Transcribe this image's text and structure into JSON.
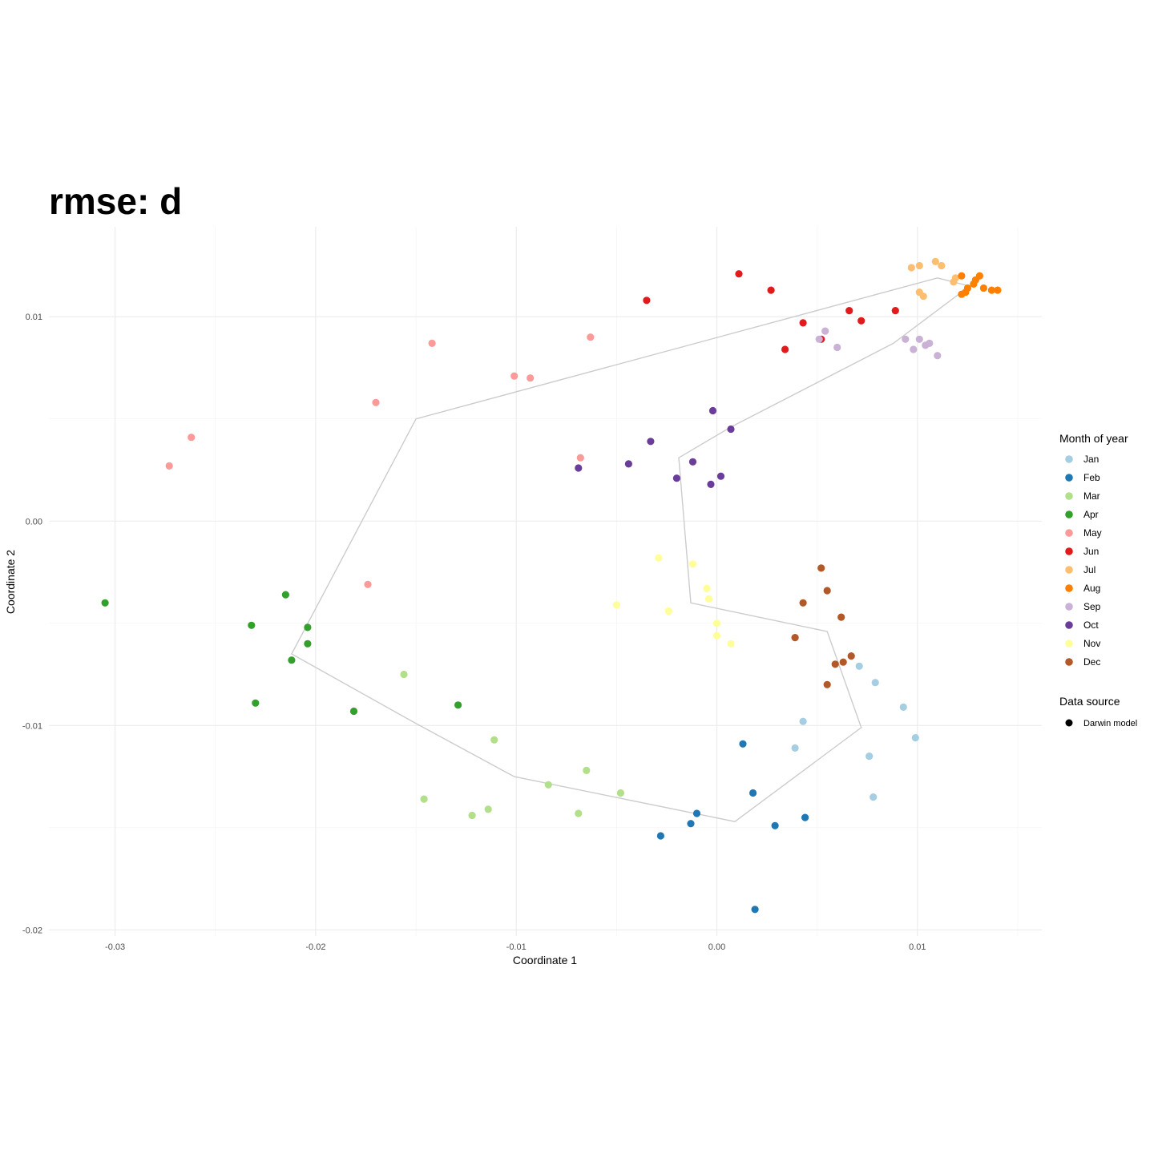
{
  "chart_data": {
    "type": "scatter",
    "title": "rmse: d",
    "xlabel": "Coordinate 1",
    "ylabel": "Coordinate 2",
    "xlim": [
      -0.0333,
      0.0162
    ],
    "ylim": [
      -0.0203,
      0.0144
    ],
    "x_ticks": [
      -0.03,
      -0.02,
      -0.01,
      0.0,
      0.01
    ],
    "x_tick_labels": [
      "-0.03",
      "-0.02",
      "-0.01",
      "0.00",
      "0.01"
    ],
    "y_ticks": [
      -0.02,
      -0.01,
      0.0,
      0.01
    ],
    "y_tick_labels": [
      "-0.02",
      "-0.01",
      "0.00",
      "0.01"
    ],
    "grid": true,
    "legend_placement": "right",
    "legend": {
      "month_title": "Month of year",
      "source_title": "Data source",
      "source_label": "Darwin model"
    },
    "series": [
      {
        "name": "Jan",
        "color": "#a6cee3",
        "points": [
          [
            0.0071,
            -0.0071
          ],
          [
            0.0079,
            -0.0079
          ],
          [
            0.0093,
            -0.0091
          ],
          [
            0.0099,
            -0.0106
          ],
          [
            0.0043,
            -0.0098
          ],
          [
            0.0039,
            -0.0111
          ],
          [
            0.0076,
            -0.0115
          ],
          [
            0.0078,
            -0.0135
          ]
        ]
      },
      {
        "name": "Feb",
        "color": "#1f78b4",
        "points": [
          [
            0.0013,
            -0.0109
          ],
          [
            0.0018,
            -0.0133
          ],
          [
            -0.001,
            -0.0143
          ],
          [
            -0.0013,
            -0.0148
          ],
          [
            -0.0028,
            -0.0154
          ],
          [
            0.0029,
            -0.0149
          ],
          [
            0.0044,
            -0.0145
          ],
          [
            0.0019,
            -0.019
          ]
        ]
      },
      {
        "name": "Mar",
        "color": "#b2df8a",
        "points": [
          [
            -0.0156,
            -0.0075
          ],
          [
            -0.0111,
            -0.0107
          ],
          [
            -0.0065,
            -0.0122
          ],
          [
            -0.0084,
            -0.0129
          ],
          [
            -0.0048,
            -0.0133
          ],
          [
            -0.0146,
            -0.0136
          ],
          [
            -0.0114,
            -0.0141
          ],
          [
            -0.0122,
            -0.0144
          ],
          [
            -0.0069,
            -0.0143
          ]
        ]
      },
      {
        "name": "Apr",
        "color": "#33a02c",
        "points": [
          [
            -0.0305,
            -0.004
          ],
          [
            -0.0215,
            -0.0036
          ],
          [
            -0.0232,
            -0.0051
          ],
          [
            -0.0204,
            -0.0052
          ],
          [
            -0.0204,
            -0.006
          ],
          [
            -0.0212,
            -0.0068
          ],
          [
            -0.023,
            -0.0089
          ],
          [
            -0.0181,
            -0.0093
          ],
          [
            -0.0129,
            -0.009
          ]
        ]
      },
      {
        "name": "May",
        "color": "#fb9a99",
        "points": [
          [
            -0.0262,
            0.0041
          ],
          [
            -0.0273,
            0.0027
          ],
          [
            -0.017,
            0.0058
          ],
          [
            -0.0142,
            0.0087
          ],
          [
            -0.0101,
            0.0071
          ],
          [
            -0.0093,
            0.007
          ],
          [
            -0.0063,
            0.009
          ],
          [
            -0.0068,
            0.0031
          ],
          [
            -0.0174,
            -0.0031
          ]
        ]
      },
      {
        "name": "Jun",
        "color": "#e31a1c",
        "points": [
          [
            0.0011,
            0.0121
          ],
          [
            0.0027,
            0.0113
          ],
          [
            -0.0035,
            0.0108
          ],
          [
            0.0066,
            0.0103
          ],
          [
            0.0089,
            0.0103
          ],
          [
            0.0043,
            0.0097
          ],
          [
            0.0072,
            0.0098
          ],
          [
            0.0052,
            0.0089
          ],
          [
            0.0034,
            0.0084
          ]
        ]
      },
      {
        "name": "Jul",
        "color": "#fdbf6f",
        "points": [
          [
            0.0109,
            0.0127
          ],
          [
            0.0112,
            0.0125
          ],
          [
            0.0097,
            0.0124
          ],
          [
            0.0101,
            0.0125
          ],
          [
            0.0118,
            0.0117
          ],
          [
            0.0119,
            0.0119
          ],
          [
            0.0101,
            0.0112
          ],
          [
            0.0103,
            0.011
          ],
          [
            0.0128,
            0.0116
          ]
        ]
      },
      {
        "name": "Aug",
        "color": "#ff7f00",
        "points": [
          [
            0.0122,
            0.012
          ],
          [
            0.0131,
            0.012
          ],
          [
            0.0129,
            0.0118
          ],
          [
            0.0128,
            0.0116
          ],
          [
            0.0125,
            0.0114
          ],
          [
            0.0133,
            0.0114
          ],
          [
            0.0137,
            0.0113
          ],
          [
            0.014,
            0.0113
          ],
          [
            0.0122,
            0.0111
          ],
          [
            0.0124,
            0.0112
          ]
        ]
      },
      {
        "name": "Sep",
        "color": "#cab2d6",
        "points": [
          [
            0.0054,
            0.0093
          ],
          [
            0.0051,
            0.0089
          ],
          [
            0.006,
            0.0085
          ],
          [
            0.0094,
            0.0089
          ],
          [
            0.0101,
            0.0089
          ],
          [
            0.0106,
            0.0087
          ],
          [
            0.0098,
            0.0084
          ],
          [
            0.0104,
            0.0086
          ],
          [
            0.011,
            0.0081
          ]
        ]
      },
      {
        "name": "Oct",
        "color": "#6a3d9a",
        "points": [
          [
            -0.0002,
            0.0054
          ],
          [
            0.0007,
            0.0045
          ],
          [
            -0.0033,
            0.0039
          ],
          [
            -0.0069,
            0.0026
          ],
          [
            -0.0044,
            0.0028
          ],
          [
            -0.0012,
            0.0029
          ],
          [
            -0.002,
            0.0021
          ],
          [
            -0.0003,
            0.0018
          ],
          [
            0.0002,
            0.0022
          ]
        ]
      },
      {
        "name": "Nov",
        "color": "#ffff99",
        "points": [
          [
            -0.0029,
            -0.0018
          ],
          [
            -0.0012,
            -0.0021
          ],
          [
            -0.005,
            -0.0041
          ],
          [
            -0.0024,
            -0.0044
          ],
          [
            -0.0005,
            -0.0033
          ],
          [
            -0.0004,
            -0.0038
          ],
          [
            0.0,
            -0.005
          ],
          [
            0.0,
            -0.0056
          ],
          [
            0.0007,
            -0.006
          ]
        ]
      },
      {
        "name": "Dec",
        "color": "#b15928",
        "points": [
          [
            0.0052,
            -0.0023
          ],
          [
            0.0055,
            -0.0034
          ],
          [
            0.0043,
            -0.004
          ],
          [
            0.0062,
            -0.0047
          ],
          [
            0.0039,
            -0.0057
          ],
          [
            0.0067,
            -0.0066
          ],
          [
            0.0063,
            -0.0069
          ],
          [
            0.0059,
            -0.007
          ],
          [
            0.0055,
            -0.008
          ]
        ]
      }
    ],
    "path": {
      "color": "#cccccc",
      "points": [
        [
          0.011,
          0.0119
        ],
        [
          0.0126,
          0.0115
        ],
        [
          0.0088,
          0.0087
        ],
        [
          0.0007,
          0.0046
        ],
        [
          -0.0019,
          0.0031
        ],
        [
          -0.0013,
          -0.004
        ],
        [
          0.0055,
          -0.0054
        ],
        [
          0.0072,
          -0.0101
        ],
        [
          0.0009,
          -0.0147
        ],
        [
          -0.0101,
          -0.0125
        ],
        [
          -0.015,
          -0.0099
        ],
        [
          -0.0212,
          -0.0065
        ],
        [
          -0.015,
          0.005
        ],
        [
          0.011,
          0.0119
        ]
      ]
    }
  }
}
